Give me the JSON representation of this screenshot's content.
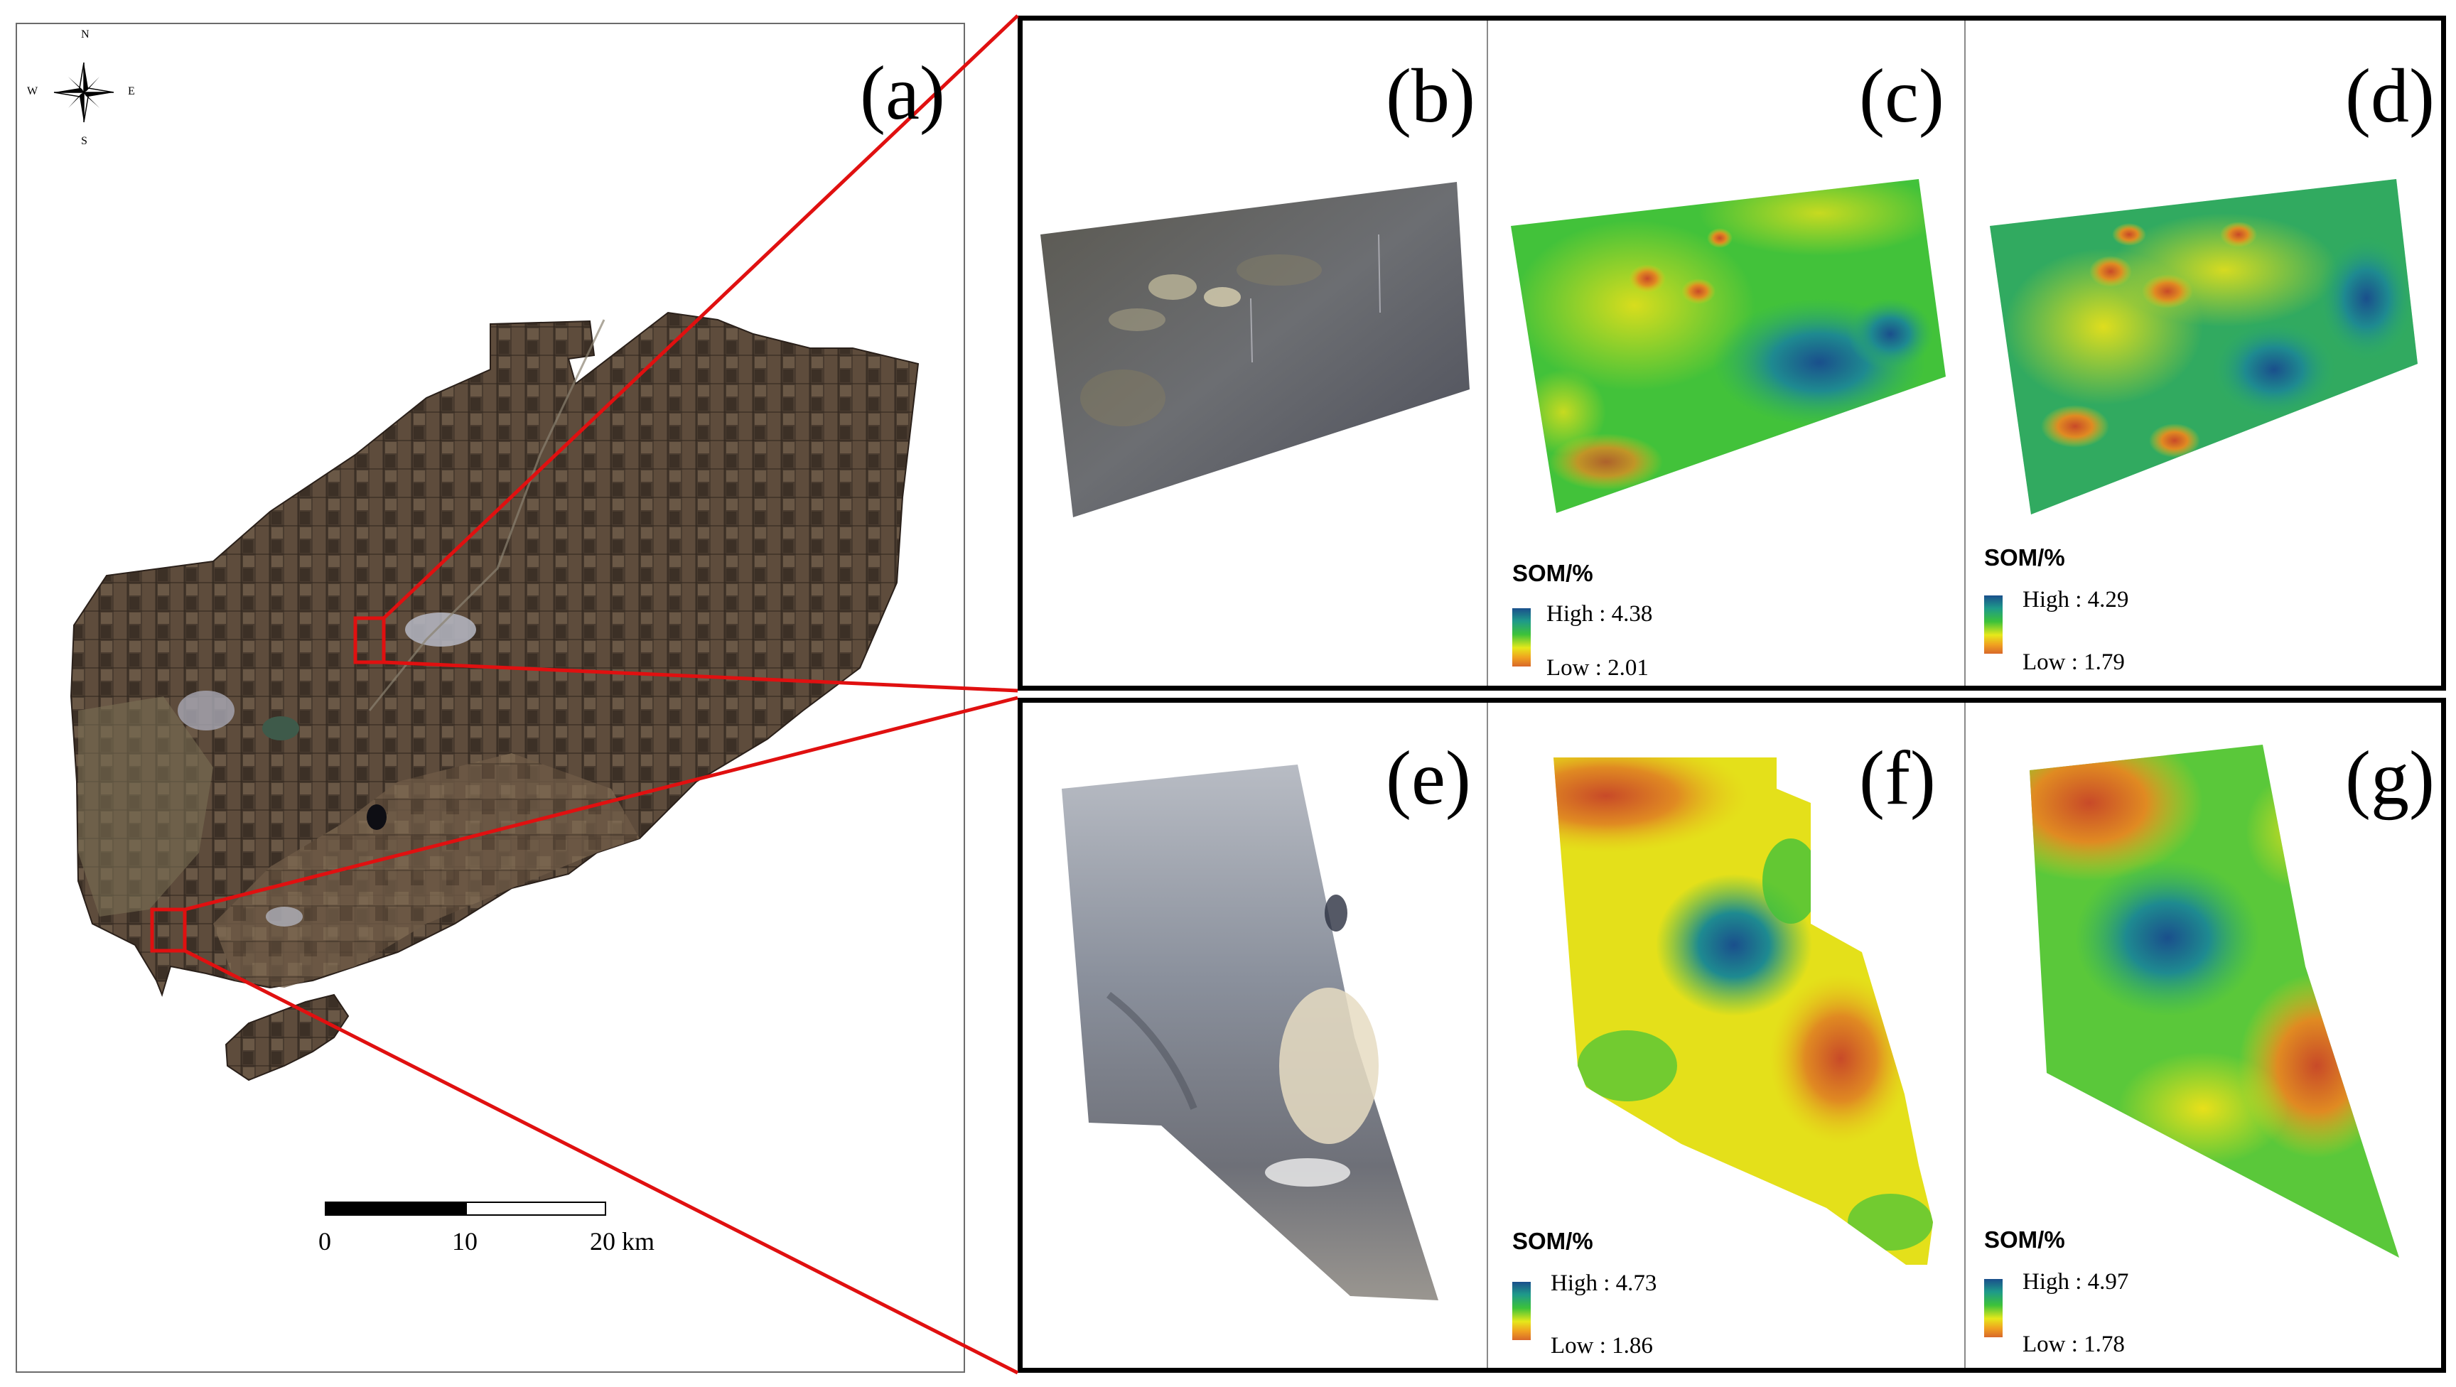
{
  "panels": {
    "a": "(a)",
    "b": "(b)",
    "c": "(c)",
    "d": "(d)",
    "e": "(e)",
    "f": "(f)",
    "g": "(g)"
  },
  "compass": {
    "n": "N",
    "s": "S",
    "e": "E",
    "w": "W"
  },
  "scale_bar": {
    "labels": [
      "0",
      "10",
      "20 km"
    ]
  },
  "legends": {
    "c": {
      "title": "SOM/%",
      "high": "High : 4.38",
      "low": "Low : 2.01"
    },
    "d": {
      "title": "SOM/%",
      "high": "High : 4.29",
      "low": "Low : 1.79"
    },
    "f": {
      "title": "SOM/%",
      "high": "High : 4.73",
      "low": "Low : 1.86"
    },
    "g": {
      "title": "SOM/%",
      "high": "High : 4.97",
      "low": "Low : 1.78"
    }
  },
  "colors": {
    "highlight": "#e01010",
    "ramp_high": "#1a4f8c",
    "ramp_mid": "#3cc23a",
    "ramp_yellow": "#e6e81a",
    "ramp_low": "#d8682a",
    "land": "#5e4c3c"
  }
}
